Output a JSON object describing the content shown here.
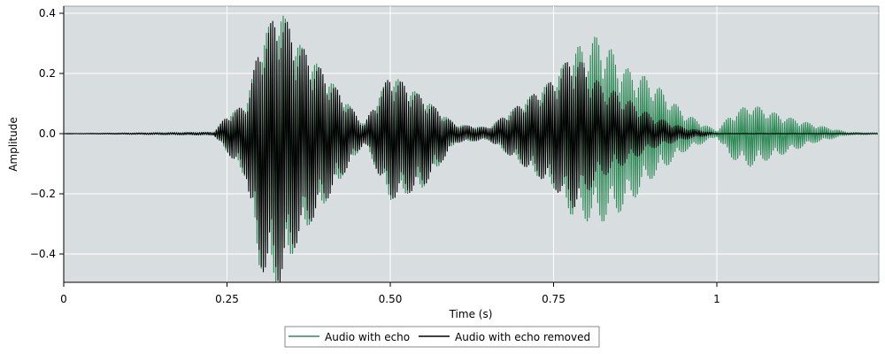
{
  "chart_data": {
    "type": "line",
    "title": "",
    "xlabel": "Time (s)",
    "ylabel": "Amplitude",
    "xlim": [
      0,
      1.25
    ],
    "ylim": [
      -0.5,
      0.42
    ],
    "x_ticks": [
      0,
      0.25,
      0.5,
      0.75,
      1
    ],
    "x_tick_labels": [
      "0",
      "0.25",
      "0.50",
      "0.75",
      "1"
    ],
    "y_ticks": [
      -0.4,
      -0.2,
      0.0,
      0.2,
      0.4
    ],
    "y_tick_labels": [
      "−0.4",
      "−0.2",
      "0.0",
      "0.2",
      "0.4"
    ],
    "grid": true,
    "legend_position": "bottom-center",
    "series": [
      {
        "name": "Audio with echo",
        "color": "#2e8b57",
        "envelope": {
          "time_s": [
            0,
            0.23,
            0.25,
            0.28,
            0.3,
            0.33,
            0.36,
            0.4,
            0.46,
            0.5,
            0.55,
            0.6,
            0.65,
            0.75,
            0.78,
            0.82,
            0.86,
            0.9,
            0.95,
            0.99,
            1.0,
            1.02,
            1.05,
            1.1,
            1.15,
            1.2,
            1.245
          ],
          "max_amplitude": [
            0,
            0.005,
            0.06,
            0.1,
            0.3,
            0.42,
            0.3,
            0.2,
            0.03,
            0.2,
            0.12,
            0.03,
            0.02,
            0.18,
            0.28,
            0.33,
            0.22,
            0.18,
            0.07,
            0.02,
            0.01,
            0.06,
            0.1,
            0.06,
            0.03,
            0.005,
            0.003
          ],
          "min_amplitude": [
            0,
            -0.005,
            -0.06,
            -0.15,
            -0.45,
            -0.5,
            -0.35,
            -0.23,
            -0.03,
            -0.22,
            -0.18,
            -0.03,
            -0.02,
            -0.18,
            -0.28,
            -0.3,
            -0.25,
            -0.15,
            -0.06,
            -0.02,
            -0.01,
            -0.08,
            -0.11,
            -0.07,
            -0.03,
            -0.005,
            -0.003
          ]
        }
      },
      {
        "name": "Audio with echo removed",
        "color": "#000000",
        "envelope": {
          "time_s": [
            0,
            0.23,
            0.25,
            0.28,
            0.3,
            0.33,
            0.36,
            0.4,
            0.46,
            0.5,
            0.55,
            0.6,
            0.65,
            0.75,
            0.78,
            0.82,
            0.86,
            0.9,
            0.95,
            0.99,
            1.0,
            1.245
          ],
          "max_amplitude": [
            0,
            0.005,
            0.06,
            0.1,
            0.3,
            0.42,
            0.3,
            0.2,
            0.03,
            0.2,
            0.12,
            0.03,
            0.02,
            0.18,
            0.27,
            0.17,
            0.12,
            0.06,
            0.02,
            0.005,
            0.001,
            0.0
          ],
          "min_amplitude": [
            0,
            -0.005,
            -0.06,
            -0.15,
            -0.45,
            -0.5,
            -0.35,
            -0.23,
            -0.03,
            -0.22,
            -0.18,
            -0.03,
            -0.02,
            -0.18,
            -0.25,
            -0.15,
            -0.1,
            -0.05,
            -0.02,
            -0.005,
            -0.001,
            0.0
          ]
        }
      }
    ]
  }
}
